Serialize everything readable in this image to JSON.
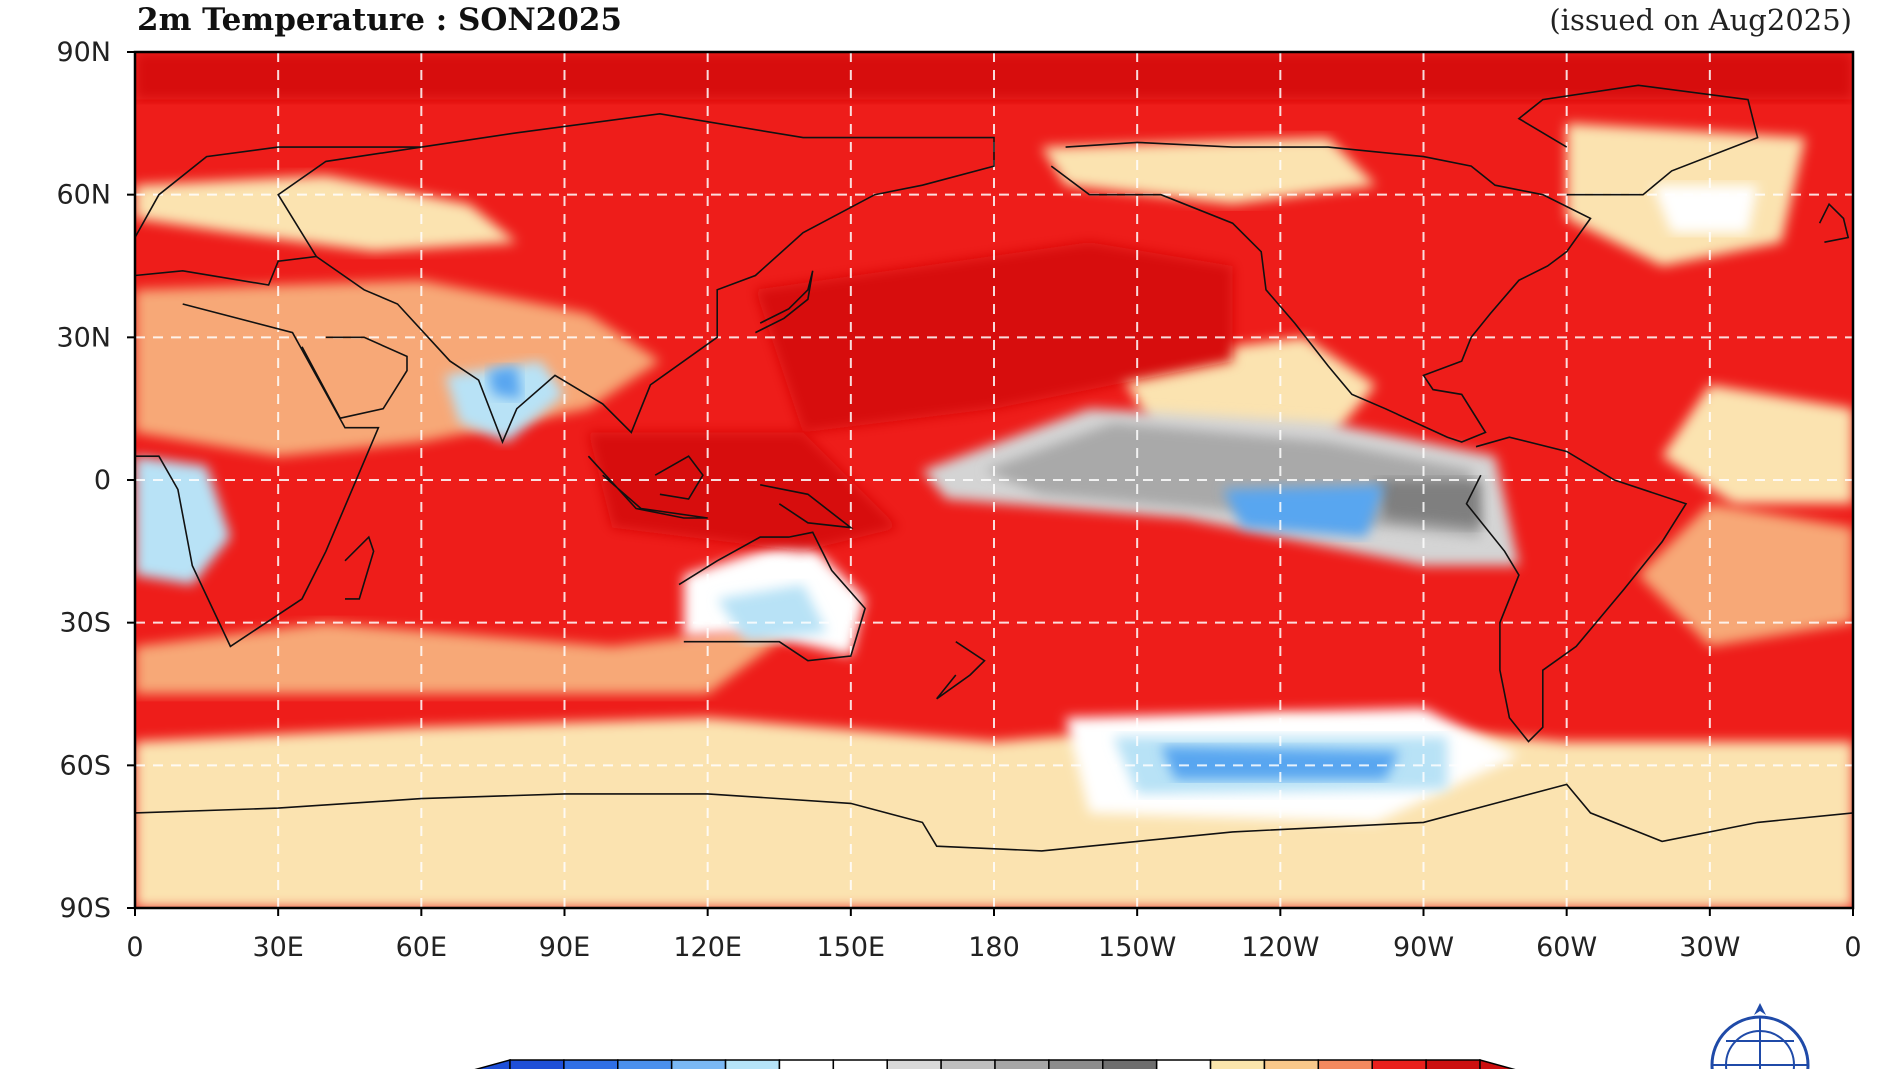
{
  "title": "2m Temperature : SON2025",
  "issued": "(issued on Aug2025)",
  "lat_labels": [
    "90N",
    "60N",
    "30N",
    "0",
    "30S",
    "60S",
    "90S"
  ],
  "lon_labels": [
    "0",
    "30E",
    "60E",
    "90E",
    "120E",
    "150E",
    "180",
    "150W",
    "120W",
    "90W",
    "60W",
    "30W",
    "0"
  ],
  "colorbar": {
    "unit": "%",
    "colors": [
      "#1e4fd8",
      "#2f6fe6",
      "#4a90ee",
      "#7ab8f4",
      "#b6e4f8",
      "#ffffff",
      "#ffffff",
      "#d9d9d9",
      "#bfbfbf",
      "#a6a6a6",
      "#8c8c8c",
      "#6e6e6e",
      "#ffffff",
      "#fbe6ac",
      "#f9c88a",
      "#f3895e",
      "#e8201c",
      "#cc0f0f"
    ]
  },
  "map_colors": {
    "warm_strong": "#d70c0c",
    "warm": "#ee1d1a",
    "mild": "#f7a877",
    "light": "#fbe3b0",
    "neutral": "#ffffff",
    "cool": "#58a6f0",
    "cool_light": "#b8e2f6",
    "grey_light": "#d4d4d4",
    "grey": "#a9a9a9",
    "grey_dark": "#7f7f7f",
    "coast": "#111111",
    "grid": "#ffffff"
  }
}
